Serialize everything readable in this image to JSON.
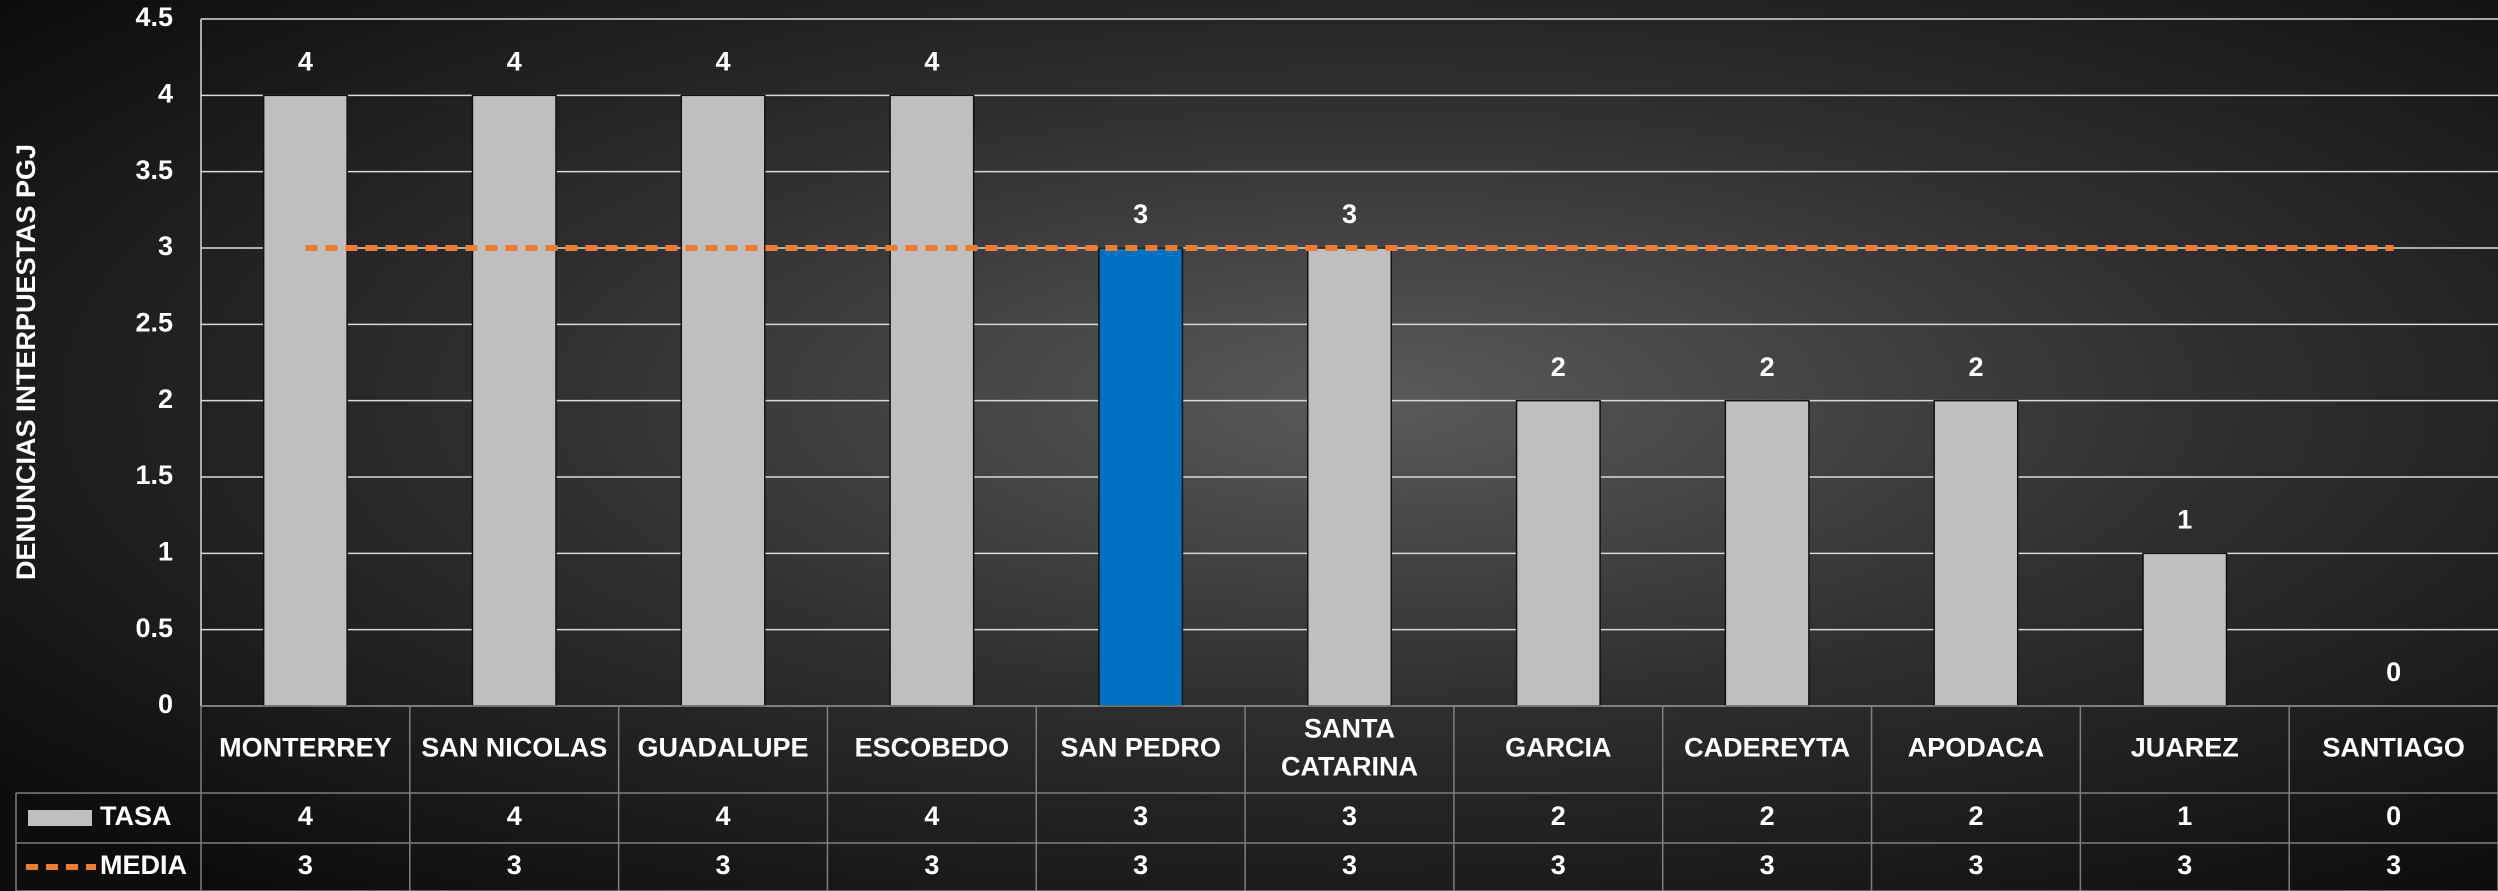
{
  "chart_data": {
    "type": "bar",
    "y_label": "DENUNCIAS INTERPUESTAS PGJ",
    "categories": [
      "MONTERREY",
      "SAN NICOLAS",
      "GUADALUPE",
      "ESCOBEDO",
      "SAN PEDRO",
      "SANTA CATARINA",
      "GARCIA",
      "CADEREYTA",
      "APODACA",
      "JUAREZ",
      "SANTIAGO"
    ],
    "series": [
      {
        "name": "TASA",
        "color": "#bfbfbf",
        "colors": [
          "#bfbfbf",
          "#bfbfbf",
          "#bfbfbf",
          "#bfbfbf",
          "#0070c0",
          "#bfbfbf",
          "#bfbfbf",
          "#bfbfbf",
          "#bfbfbf",
          "#bfbfbf",
          "#bfbfbf"
        ],
        "values": [
          4,
          4,
          4,
          4,
          3,
          3,
          2,
          2,
          2,
          1,
          0
        ]
      },
      {
        "name": "MEDIA",
        "type": "line",
        "color": "#ed7d31",
        "dashed": true,
        "values": [
          3,
          3,
          3,
          3,
          3,
          3,
          3,
          3,
          3,
          3,
          3
        ]
      }
    ],
    "ylim": [
      0,
      4.5
    ],
    "yticks": [
      0,
      0.5,
      1,
      1.5,
      2,
      2.5,
      3,
      3.5,
      4,
      4.5
    ],
    "grid": true,
    "data_table": true
  }
}
